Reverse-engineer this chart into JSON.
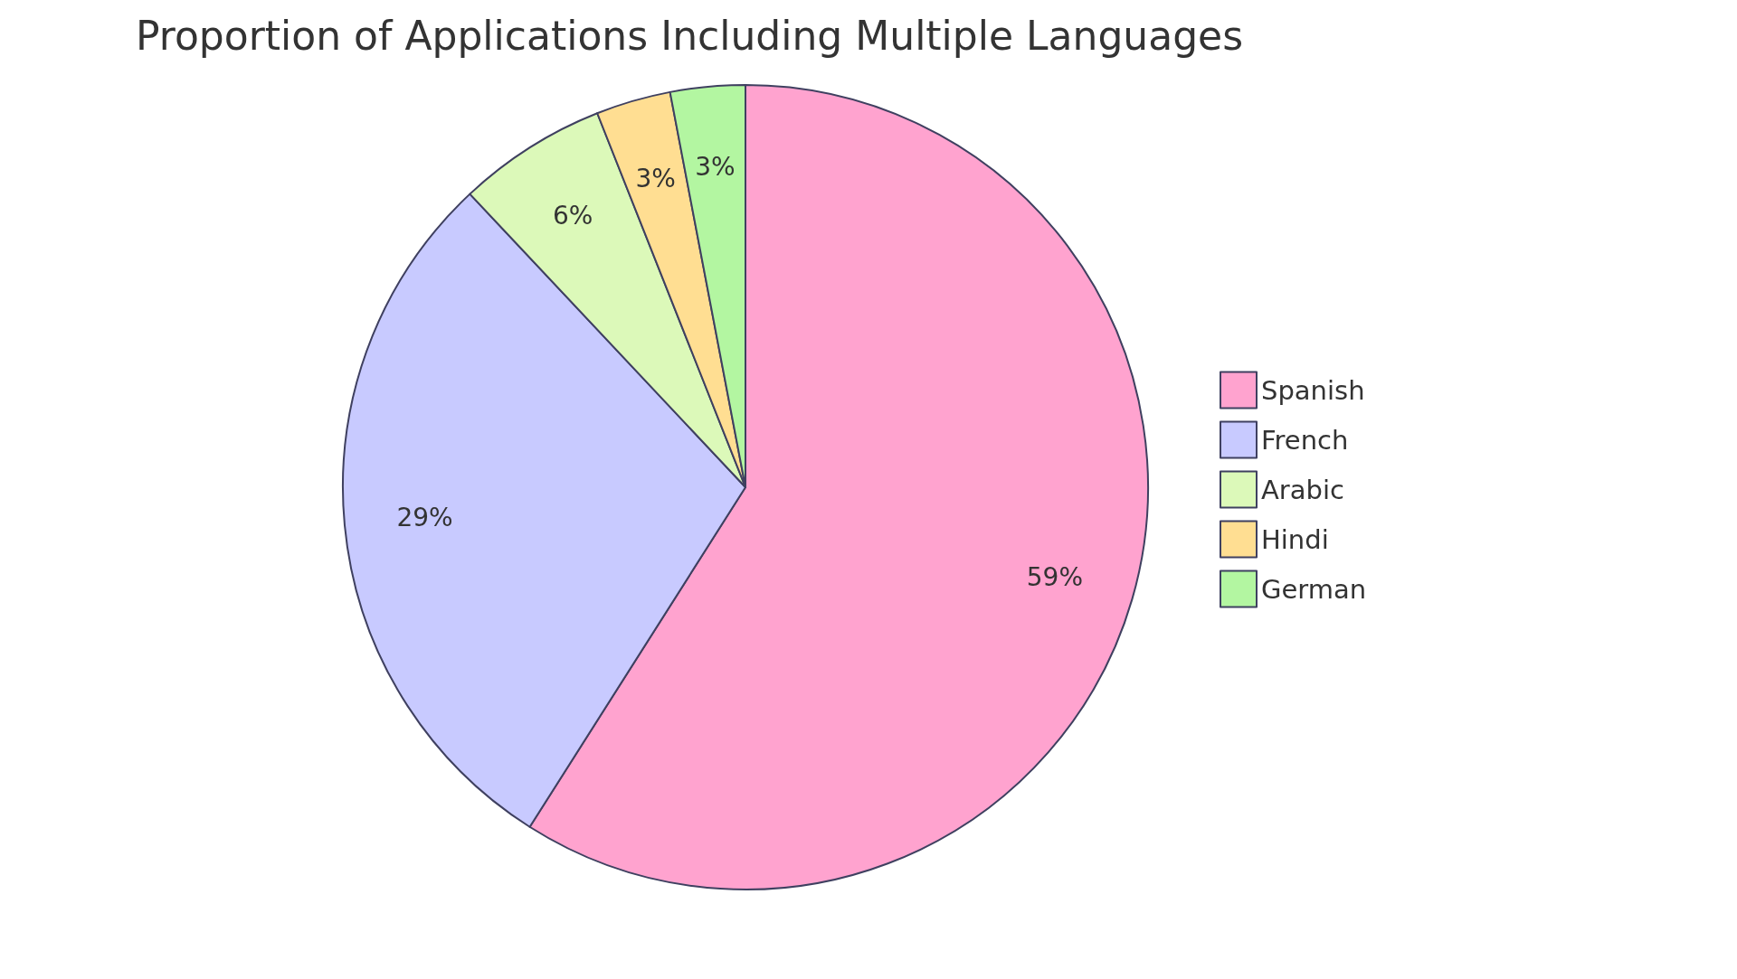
{
  "chart_data": {
    "type": "pie",
    "title": "Proportion of Applications Including Multiple Languages",
    "categories": [
      "Spanish",
      "French",
      "Arabic",
      "Hindi",
      "German"
    ],
    "values": [
      59,
      29,
      6,
      3,
      3
    ],
    "value_labels": [
      "59%",
      "29%",
      "6%",
      "3%",
      "3%"
    ],
    "colors": [
      "#ffa3cf",
      "#c8caff",
      "#dcf9b9",
      "#ffde92",
      "#b3f6a1"
    ],
    "legend": "right"
  }
}
